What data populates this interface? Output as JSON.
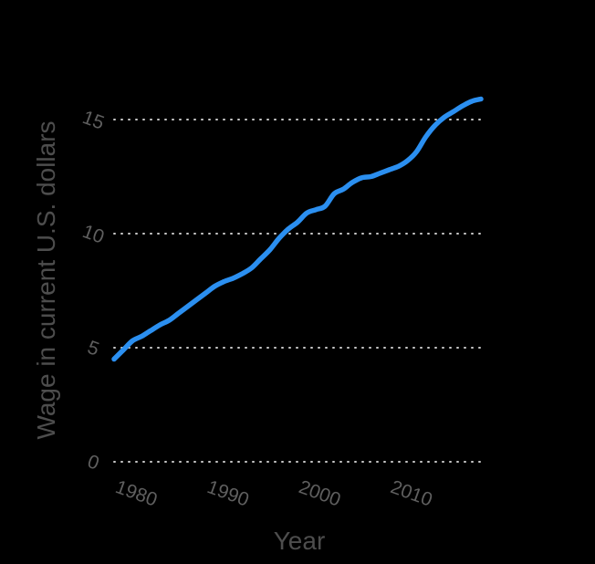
{
  "chart_data": {
    "type": "line",
    "xlabel": "Year",
    "ylabel": "Wage in current U.S. dollars",
    "xlim": [
      1978,
      2018
    ],
    "ylim": [
      0,
      15
    ],
    "x_ticks": [
      1980,
      1990,
      2000,
      2010
    ],
    "y_ticks": [
      0,
      5,
      10,
      15
    ],
    "grid": true,
    "colors": {
      "background": "#000000",
      "line": "#2b8ff0",
      "grid": "#c8c8c8",
      "text": "#5f5f5f"
    },
    "series": [
      {
        "x": [
          1978,
          1979,
          1980,
          1981,
          1982,
          1983,
          1984,
          1985,
          1986,
          1987,
          1988,
          1989,
          1990,
          1991,
          1992,
          1993,
          1994,
          1995,
          1996,
          1997,
          1998,
          1999,
          2000,
          2001,
          2002,
          2003,
          2004,
          2005,
          2006,
          2007,
          2008,
          2009,
          2010,
          2011,
          2012,
          2013,
          2014,
          2015,
          2016,
          2017,
          2018
        ],
        "y": [
          4.5,
          4.9,
          5.3,
          5.5,
          5.75,
          6.0,
          6.2,
          6.5,
          6.8,
          7.1,
          7.4,
          7.7,
          7.9,
          8.05,
          8.25,
          8.5,
          8.9,
          9.3,
          9.8,
          10.2,
          10.5,
          10.9,
          11.05,
          11.2,
          11.75,
          11.95,
          12.25,
          12.45,
          12.5,
          12.65,
          12.8,
          12.95,
          13.2,
          13.6,
          14.25,
          14.75,
          15.1,
          15.35,
          15.6,
          15.8,
          15.9
        ]
      }
    ]
  }
}
